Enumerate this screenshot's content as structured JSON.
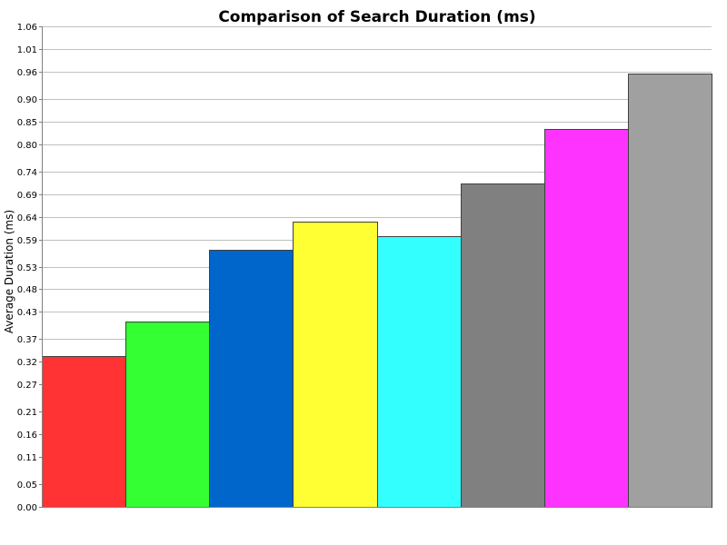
{
  "chart_data": {
    "type": "bar",
    "title": "Comparison of Search Duration (ms)",
    "xlabel": "",
    "ylabel": "Average Duration (ms)",
    "ylim": [
      0,
      1.06
    ],
    "y_ticks": [
      0.0,
      0.05,
      0.11,
      0.16,
      0.21,
      0.27,
      0.32,
      0.37,
      0.43,
      0.48,
      0.53,
      0.59,
      0.64,
      0.69,
      0.74,
      0.8,
      0.85,
      0.9,
      0.96,
      1.01,
      1.06
    ],
    "y_tick_labels": [
      "0.00",
      "0.05",
      "0.11",
      "0.16",
      "0.21",
      "0.27",
      "0.32",
      "0.37",
      "0.43",
      "0.48",
      "0.53",
      "0.59",
      "0.64",
      "0.69",
      "0.74",
      "0.80",
      "0.85",
      "0.90",
      "0.96",
      "1.01",
      "1.06"
    ],
    "grid": true,
    "legend": "none",
    "values": [
      0.333,
      0.408,
      0.568,
      0.63,
      0.597,
      0.714,
      0.834,
      0.956
    ],
    "colors": [
      "#ff3333",
      "#33ff33",
      "#0066cc",
      "#ffff33",
      "#33ffff",
      "#808080",
      "#ff33ff",
      "#a0a0a0"
    ]
  }
}
